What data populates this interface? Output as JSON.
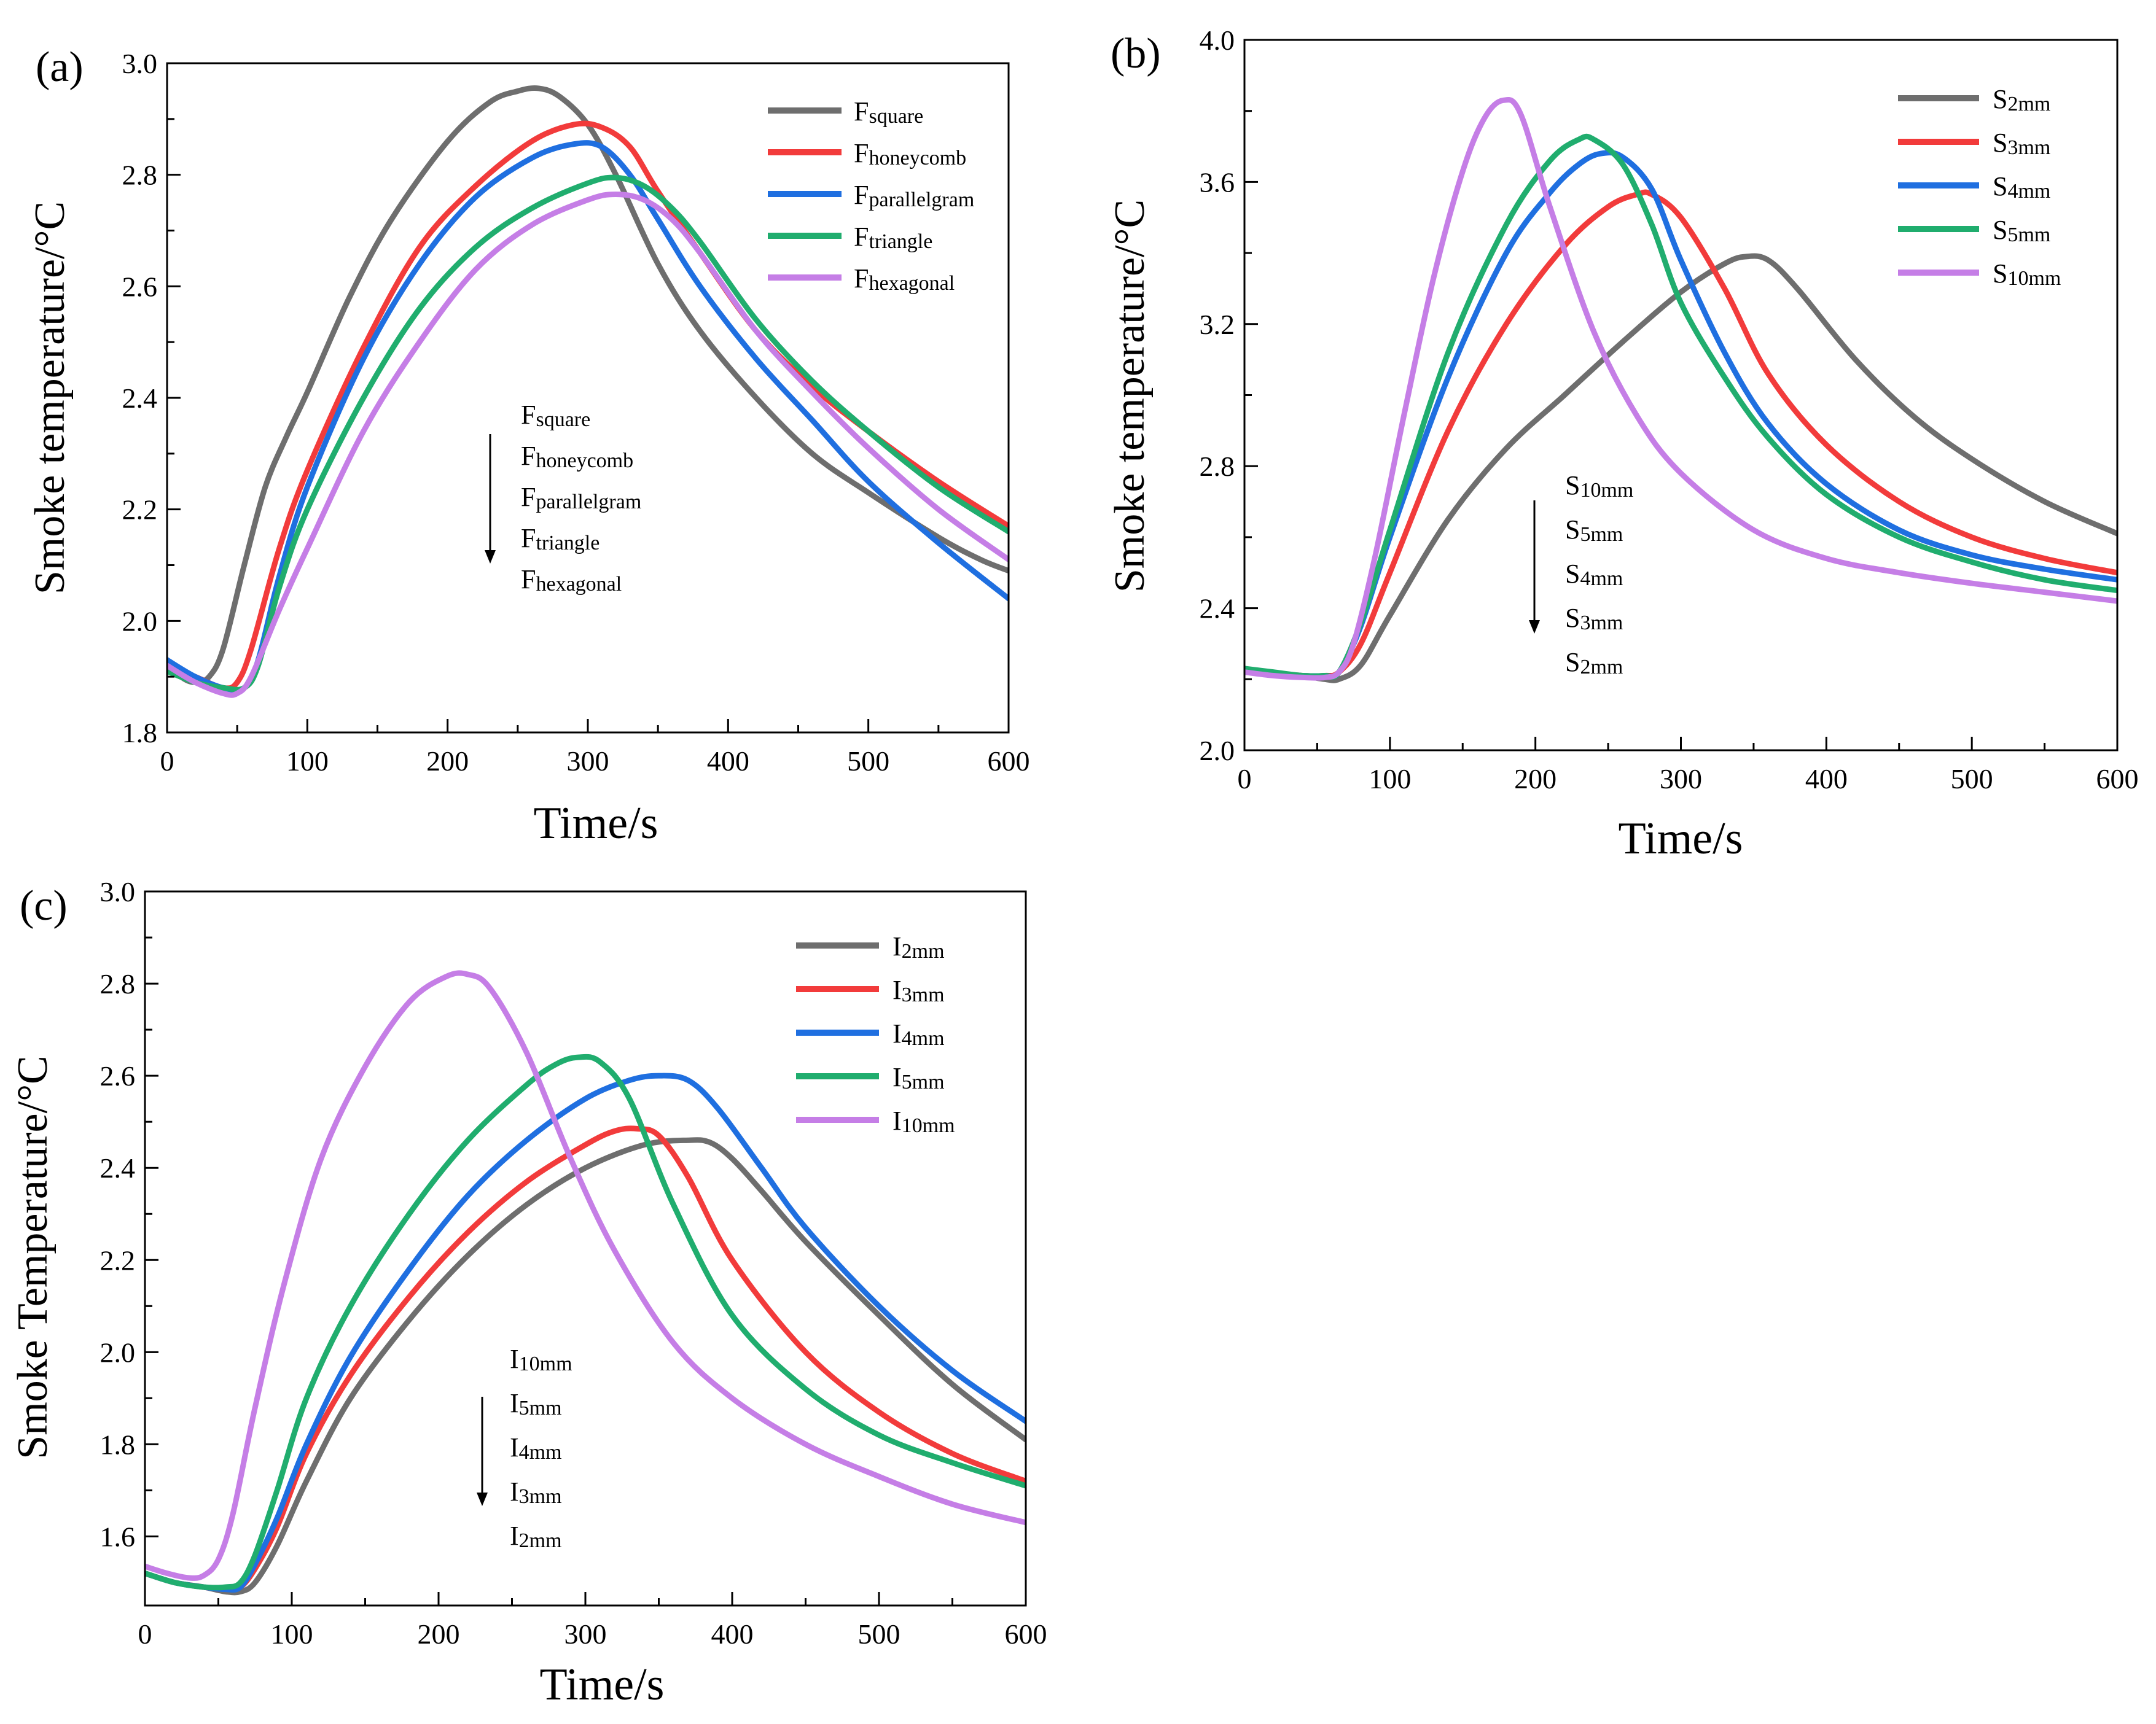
{
  "series_colors": {
    "gray": "#6e6e6e",
    "red": "#f23b3b",
    "blue": "#1f6fe0",
    "green": "#20ad6e",
    "purple": "#c57ee6"
  },
  "chart_data": [
    {
      "type": "line",
      "panel_label": "(a)",
      "xlabel": "Time/s",
      "ylabel": "Smoke temperature/°C",
      "xlim": [
        0,
        600
      ],
      "ylim": [
        1.8,
        3.0
      ],
      "xticks": [
        0,
        100,
        200,
        300,
        400,
        500,
        600
      ],
      "yticks": [
        1.8,
        2.0,
        2.2,
        2.4,
        2.6,
        2.8,
        3.0
      ],
      "ytick_labels": [
        "1.8",
        "2.0",
        "2.2",
        "2.4",
        "2.6",
        "2.8",
        "3.0"
      ],
      "legend_position": "top-right",
      "order_note": {
        "labels": [
          {
            "main": "F",
            "sub": "square"
          },
          {
            "main": "F",
            "sub": "honeycomb"
          },
          {
            "main": "F",
            "sub": "parallelgram"
          },
          {
            "main": "F",
            "sub": "triangle"
          },
          {
            "main": "F",
            "sub": "hexagonal"
          }
        ]
      },
      "series": [
        {
          "name": "Fsquare",
          "label_main": "F",
          "label_sub": "square",
          "color_key": "gray",
          "x": [
            0,
            10,
            20,
            30,
            40,
            55,
            70,
            85,
            100,
            130,
            160,
            200,
            230,
            250,
            265,
            280,
            300,
            320,
            350,
            380,
            420,
            460,
            500,
            550,
            580,
            600
          ],
          "y": [
            1.93,
            1.9,
            1.89,
            1.9,
            1.95,
            2.1,
            2.24,
            2.33,
            2.41,
            2.58,
            2.72,
            2.86,
            2.93,
            2.95,
            2.955,
            2.94,
            2.89,
            2.8,
            2.64,
            2.52,
            2.4,
            2.3,
            2.23,
            2.15,
            2.11,
            2.09
          ]
        },
        {
          "name": "Fhoneycomb",
          "label_main": "F",
          "label_sub": "honeycomb",
          "color_key": "red",
          "x": [
            0,
            20,
            40,
            50,
            60,
            80,
            100,
            140,
            180,
            220,
            260,
            290,
            310,
            330,
            350,
            380,
            420,
            460,
            500,
            550,
            600
          ],
          "y": [
            1.92,
            1.9,
            1.88,
            1.89,
            1.95,
            2.13,
            2.27,
            2.49,
            2.67,
            2.78,
            2.86,
            2.89,
            2.885,
            2.85,
            2.77,
            2.66,
            2.52,
            2.42,
            2.34,
            2.25,
            2.17
          ]
        },
        {
          "name": "Fparallelgram",
          "label_main": "F",
          "label_sub": "parallelgram",
          "color_key": "blue",
          "x": [
            0,
            20,
            40,
            55,
            65,
            80,
            100,
            140,
            180,
            220,
            260,
            290,
            310,
            330,
            350,
            380,
            420,
            460,
            500,
            550,
            600
          ],
          "y": [
            1.93,
            1.9,
            1.88,
            1.88,
            1.93,
            2.08,
            2.24,
            2.47,
            2.64,
            2.76,
            2.83,
            2.855,
            2.85,
            2.8,
            2.72,
            2.6,
            2.47,
            2.36,
            2.25,
            2.14,
            2.04
          ]
        },
        {
          "name": "Ftriangle",
          "label_main": "F",
          "label_sub": "triangle",
          "color_key": "green",
          "x": [
            0,
            20,
            40,
            55,
            65,
            80,
            100,
            140,
            180,
            220,
            260,
            300,
            320,
            340,
            360,
            380,
            420,
            460,
            500,
            550,
            600
          ],
          "y": [
            1.91,
            1.89,
            1.88,
            1.88,
            1.92,
            2.06,
            2.2,
            2.4,
            2.56,
            2.67,
            2.74,
            2.785,
            2.795,
            2.78,
            2.74,
            2.68,
            2.54,
            2.43,
            2.34,
            2.24,
            2.16
          ]
        },
        {
          "name": "Fhexagonal",
          "label_main": "F",
          "label_sub": "hexagonal",
          "color_key": "purple",
          "x": [
            0,
            20,
            40,
            50,
            60,
            80,
            100,
            140,
            180,
            220,
            260,
            300,
            320,
            340,
            360,
            380,
            420,
            460,
            500,
            550,
            600
          ],
          "y": [
            1.92,
            1.89,
            1.87,
            1.87,
            1.9,
            2.02,
            2.13,
            2.34,
            2.5,
            2.63,
            2.71,
            2.755,
            2.765,
            2.755,
            2.72,
            2.66,
            2.52,
            2.41,
            2.31,
            2.2,
            2.11
          ]
        }
      ]
    },
    {
      "type": "line",
      "panel_label": "(b)",
      "xlabel": "Time/s",
      "ylabel": "Smoke temperature/°C",
      "xlim": [
        0,
        600
      ],
      "ylim": [
        2.0,
        4.0
      ],
      "xticks": [
        0,
        100,
        200,
        300,
        400,
        500,
        600
      ],
      "yticks": [
        2.0,
        2.4,
        2.8,
        3.2,
        3.6,
        4.0
      ],
      "ytick_labels": [
        "2.0",
        "2.4",
        "2.8",
        "3.2",
        "3.6",
        "4.0"
      ],
      "legend_position": "top-right",
      "order_note": {
        "labels": [
          {
            "main": "S",
            "sub": "10mm"
          },
          {
            "main": "S",
            "sub": "5mm"
          },
          {
            "main": "S",
            "sub": "4mm"
          },
          {
            "main": "S",
            "sub": "3mm"
          },
          {
            "main": "S",
            "sub": "2mm"
          }
        ]
      },
      "series": [
        {
          "name": "S2mm",
          "label_main": "S",
          "label_sub": "2mm",
          "color_key": "gray",
          "x": [
            0,
            20,
            40,
            55,
            65,
            80,
            100,
            140,
            180,
            220,
            260,
            300,
            330,
            345,
            360,
            380,
            420,
            460,
            500,
            550,
            600
          ],
          "y": [
            2.22,
            2.215,
            2.21,
            2.2,
            2.2,
            2.24,
            2.38,
            2.65,
            2.85,
            3.0,
            3.15,
            3.29,
            3.37,
            3.39,
            3.38,
            3.3,
            3.1,
            2.94,
            2.82,
            2.7,
            2.61
          ]
        },
        {
          "name": "S3mm",
          "label_main": "S",
          "label_sub": "3mm",
          "color_key": "red",
          "x": [
            0,
            20,
            40,
            55,
            65,
            80,
            100,
            140,
            180,
            220,
            250,
            270,
            280,
            300,
            330,
            360,
            400,
            450,
            500,
            550,
            600
          ],
          "y": [
            2.22,
            2.215,
            2.21,
            2.21,
            2.22,
            2.3,
            2.5,
            2.9,
            3.2,
            3.42,
            3.53,
            3.565,
            3.565,
            3.5,
            3.3,
            3.06,
            2.86,
            2.7,
            2.6,
            2.54,
            2.5
          ]
        },
        {
          "name": "S4mm",
          "label_main": "S",
          "label_sub": "4mm",
          "color_key": "blue",
          "x": [
            0,
            20,
            40,
            55,
            65,
            80,
            100,
            140,
            180,
            210,
            230,
            245,
            260,
            280,
            300,
            330,
            360,
            400,
            450,
            500,
            550,
            600
          ],
          "y": [
            2.22,
            2.215,
            2.21,
            2.21,
            2.22,
            2.35,
            2.6,
            3.05,
            3.4,
            3.57,
            3.65,
            3.68,
            3.67,
            3.58,
            3.38,
            3.12,
            2.92,
            2.75,
            2.62,
            2.55,
            2.51,
            2.48
          ]
        },
        {
          "name": "S5mm",
          "label_main": "S",
          "label_sub": "5mm",
          "color_key": "green",
          "x": [
            0,
            20,
            40,
            55,
            65,
            80,
            100,
            140,
            180,
            210,
            230,
            240,
            260,
            280,
            300,
            330,
            360,
            400,
            450,
            500,
            550,
            600
          ],
          "y": [
            2.23,
            2.22,
            2.21,
            2.21,
            2.22,
            2.36,
            2.62,
            3.12,
            3.48,
            3.66,
            3.72,
            3.72,
            3.65,
            3.48,
            3.26,
            3.05,
            2.88,
            2.72,
            2.6,
            2.53,
            2.48,
            2.45
          ]
        },
        {
          "name": "S10mm",
          "label_main": "S",
          "label_sub": "10mm",
          "color_key": "purple",
          "x": [
            0,
            20,
            40,
            55,
            65,
            75,
            90,
            110,
            130,
            150,
            165,
            178,
            190,
            210,
            240,
            270,
            300,
            350,
            400,
            450,
            500,
            550,
            600
          ],
          "y": [
            2.22,
            2.21,
            2.205,
            2.205,
            2.22,
            2.3,
            2.55,
            2.95,
            3.33,
            3.63,
            3.78,
            3.83,
            3.79,
            3.53,
            3.18,
            2.94,
            2.78,
            2.62,
            2.54,
            2.5,
            2.47,
            2.445,
            2.42
          ]
        }
      ]
    },
    {
      "type": "line",
      "panel_label": "(c)",
      "xlabel": "Time/s",
      "ylabel": "Smoke Temperature/°C",
      "xlim": [
        0,
        600
      ],
      "ylim": [
        1.45,
        3.0
      ],
      "xticks": [
        0,
        100,
        200,
        300,
        400,
        500,
        600
      ],
      "yticks": [
        1.6,
        1.8,
        2.0,
        2.2,
        2.4,
        2.6,
        2.8,
        3.0
      ],
      "ytick_labels": [
        "1.6",
        "1.8",
        "2.0",
        "2.2",
        "2.4",
        "2.6",
        "2.8",
        "3.0"
      ],
      "legend_position": "top-right",
      "order_note": {
        "labels": [
          {
            "main": "I",
            "sub": "10mm"
          },
          {
            "main": "I",
            "sub": "5mm"
          },
          {
            "main": "I",
            "sub": "4mm"
          },
          {
            "main": "I",
            "sub": "3mm"
          },
          {
            "main": "I",
            "sub": "2mm"
          }
        ]
      },
      "series": [
        {
          "name": "I2mm",
          "label_main": "I",
          "label_sub": "2mm",
          "color_key": "gray",
          "x": [
            0,
            20,
            40,
            55,
            65,
            75,
            90,
            110,
            140,
            180,
            220,
            260,
            300,
            340,
            370,
            385,
            400,
            420,
            450,
            500,
            550,
            600
          ],
          "y": [
            1.52,
            1.5,
            1.49,
            1.48,
            1.48,
            1.5,
            1.58,
            1.72,
            1.9,
            2.07,
            2.21,
            2.32,
            2.4,
            2.45,
            2.46,
            2.455,
            2.42,
            2.35,
            2.24,
            2.08,
            1.93,
            1.81
          ]
        },
        {
          "name": "I3mm",
          "label_main": "I",
          "label_sub": "3mm",
          "color_key": "red",
          "x": [
            0,
            20,
            40,
            55,
            65,
            75,
            90,
            110,
            140,
            180,
            220,
            260,
            300,
            320,
            335,
            350,
            370,
            400,
            450,
            500,
            550,
            600
          ],
          "y": [
            1.52,
            1.5,
            1.49,
            1.485,
            1.49,
            1.53,
            1.62,
            1.78,
            1.95,
            2.12,
            2.26,
            2.37,
            2.45,
            2.48,
            2.485,
            2.47,
            2.38,
            2.2,
            2.0,
            1.87,
            1.78,
            1.72
          ]
        },
        {
          "name": "I4mm",
          "label_main": "I",
          "label_sub": "4mm",
          "color_key": "blue",
          "x": [
            0,
            20,
            40,
            55,
            65,
            75,
            90,
            110,
            140,
            180,
            220,
            260,
            300,
            330,
            350,
            370,
            390,
            420,
            450,
            500,
            550,
            600
          ],
          "y": [
            1.52,
            1.5,
            1.49,
            1.485,
            1.49,
            1.54,
            1.64,
            1.8,
            1.99,
            2.18,
            2.34,
            2.46,
            2.55,
            2.59,
            2.6,
            2.59,
            2.53,
            2.4,
            2.27,
            2.1,
            1.96,
            1.85
          ]
        },
        {
          "name": "I5mm",
          "label_main": "I",
          "label_sub": "5mm",
          "color_key": "green",
          "x": [
            0,
            20,
            40,
            55,
            65,
            75,
            90,
            110,
            140,
            180,
            220,
            260,
            280,
            295,
            310,
            330,
            360,
            400,
            450,
            500,
            550,
            600
          ],
          "y": [
            1.52,
            1.5,
            1.49,
            1.49,
            1.5,
            1.56,
            1.7,
            1.9,
            2.1,
            2.3,
            2.46,
            2.58,
            2.625,
            2.64,
            2.63,
            2.55,
            2.32,
            2.08,
            1.92,
            1.82,
            1.76,
            1.71
          ]
        },
        {
          "name": "I10mm",
          "label_main": "I",
          "label_sub": "10mm",
          "color_key": "purple",
          "x": [
            0,
            15,
            30,
            40,
            50,
            60,
            75,
            95,
            120,
            150,
            180,
            205,
            220,
            235,
            260,
            290,
            320,
            360,
            400,
            450,
            500,
            550,
            600
          ],
          "y": [
            1.535,
            1.52,
            1.51,
            1.515,
            1.55,
            1.65,
            1.88,
            2.15,
            2.42,
            2.62,
            2.76,
            2.815,
            2.82,
            2.79,
            2.65,
            2.42,
            2.22,
            2.02,
            1.9,
            1.8,
            1.73,
            1.67,
            1.63
          ]
        }
      ]
    }
  ]
}
